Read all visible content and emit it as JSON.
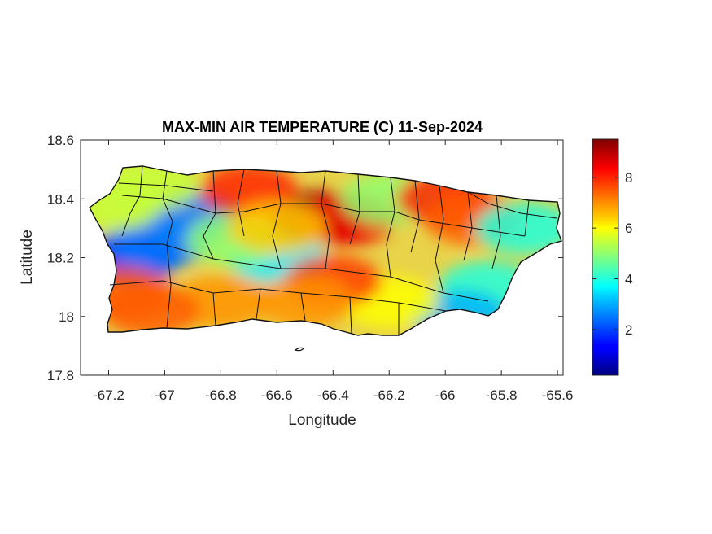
{
  "chart_data": {
    "type": "heatmap",
    "title": "MAX-MIN AIR TEMPERATURE (C) 11-Sep-2024",
    "xlabel": "Longitude",
    "ylabel": "Latitude",
    "xlim": [
      -67.3,
      -65.58
    ],
    "ylim": [
      17.8,
      18.6
    ],
    "x_ticks": [
      -67.2,
      -67,
      -66.8,
      -66.6,
      -66.4,
      -66.2,
      -66,
      -65.8,
      -65.6
    ],
    "x_tick_labels": [
      "-67.2",
      "-67",
      "-66.8",
      "-66.6",
      "-66.4",
      "-66.2",
      "-66",
      "-65.8",
      "-65.6"
    ],
    "y_ticks": [
      17.8,
      18,
      18.2,
      18.4,
      18.6
    ],
    "y_tick_labels": [
      "17.8",
      "18",
      "18.2",
      "18.4",
      "18.6"
    ],
    "colorbar": {
      "colormap": "jet",
      "range": [
        0.2,
        9.5
      ],
      "ticks": [
        2,
        4,
        6,
        8
      ],
      "tick_labels": [
        "2",
        "4",
        "6",
        "8"
      ]
    },
    "grid": false,
    "regions": [
      {
        "lon": -67.12,
        "lat": 18.2,
        "value": 1.5
      },
      {
        "lon": -67.02,
        "lat": 18.25,
        "value": 2.5
      },
      {
        "lon": -66.9,
        "lat": 18.34,
        "value": 2.5
      },
      {
        "lon": -66.6,
        "lat": 18.2,
        "value": 3.5
      },
      {
        "lon": -66.75,
        "lat": 18.26,
        "value": 5.0
      },
      {
        "lon": -66.45,
        "lat": 18.34,
        "value": 9.3
      },
      {
        "lon": -66.35,
        "lat": 18.33,
        "value": 8.5
      },
      {
        "lon": -66.7,
        "lat": 18.43,
        "value": 8.0
      },
      {
        "lon": -66.2,
        "lat": 18.4,
        "value": 5.0
      },
      {
        "lon": -66.0,
        "lat": 18.4,
        "value": 8.0
      },
      {
        "lon": -65.9,
        "lat": 18.33,
        "value": 7.5
      },
      {
        "lon": -65.72,
        "lat": 18.3,
        "value": 4.0
      },
      {
        "lon": -65.85,
        "lat": 18.1,
        "value": 4.0
      },
      {
        "lon": -65.95,
        "lat": 18.0,
        "value": 3.0
      },
      {
        "lon": -66.2,
        "lat": 18.05,
        "value": 6.0
      },
      {
        "lon": -66.4,
        "lat": 18.12,
        "value": 7.8
      },
      {
        "lon": -66.5,
        "lat": 18.05,
        "value": 7.0
      },
      {
        "lon": -66.8,
        "lat": 18.05,
        "value": 7.0
      },
      {
        "lon": -67.05,
        "lat": 18.02,
        "value": 7.5
      },
      {
        "lon": -67.15,
        "lat": 18.08,
        "value": 7.5
      },
      {
        "lon": -67.18,
        "lat": 18.38,
        "value": 5.5
      },
      {
        "lon": -67.05,
        "lat": 18.45,
        "value": 5.5
      },
      {
        "lon": -66.6,
        "lat": 18.3,
        "value": 6.5
      }
    ]
  }
}
